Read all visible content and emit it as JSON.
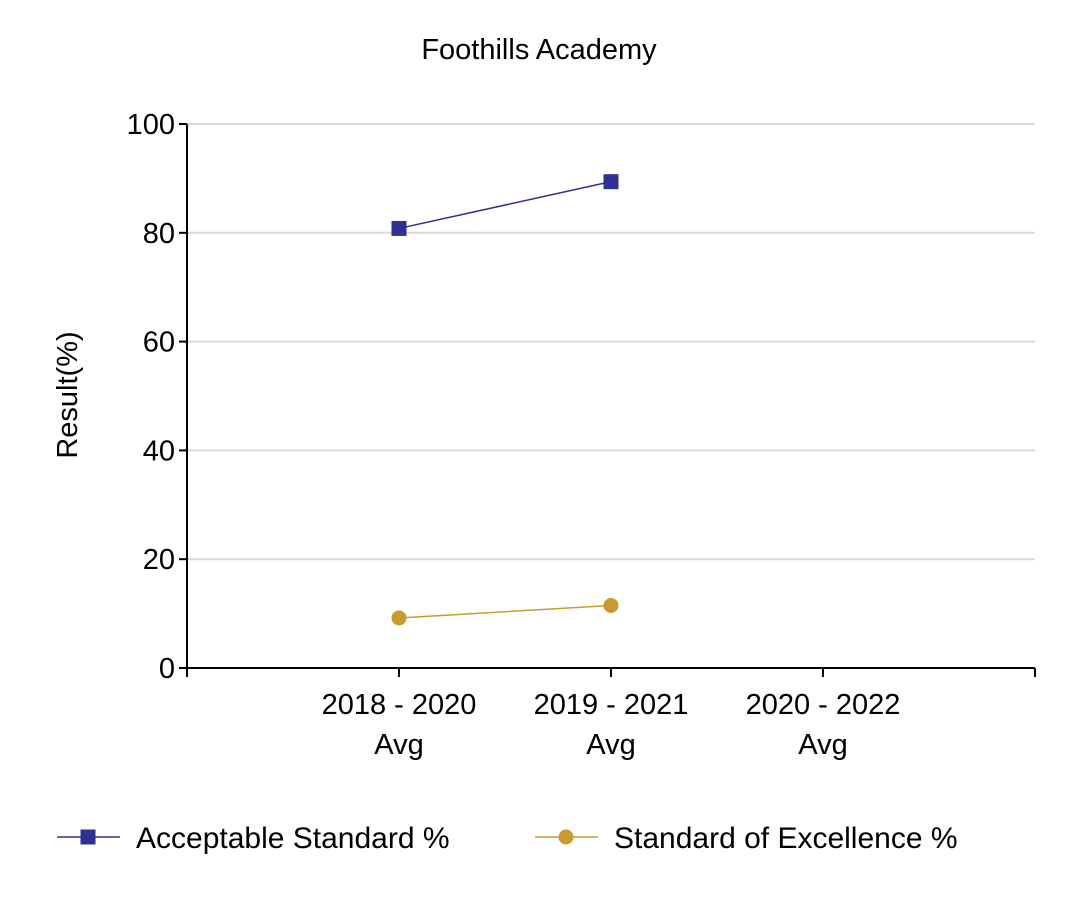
{
  "chart_data": {
    "type": "line",
    "title": "Foothills Academy",
    "xlabel": "",
    "ylabel": "Result(%)",
    "ylim": [
      0,
      100
    ],
    "yticks": [
      0,
      20,
      40,
      60,
      80,
      100
    ],
    "grid": true,
    "legend_position": "bottom",
    "categories": [
      [
        "2018 - 2020",
        "Avg"
      ],
      [
        "2019 - 2021",
        "Avg"
      ],
      [
        "2020 - 2022",
        "Avg"
      ]
    ],
    "series": [
      {
        "name": "Acceptable Standard %",
        "color": "#2e3192",
        "marker": "square",
        "values": [
          80.8,
          89.4,
          null
        ]
      },
      {
        "name": "Standard of Excellence %",
        "color": "#c99a2e",
        "marker": "circle",
        "values": [
          9.2,
          11.5,
          null
        ]
      }
    ]
  }
}
